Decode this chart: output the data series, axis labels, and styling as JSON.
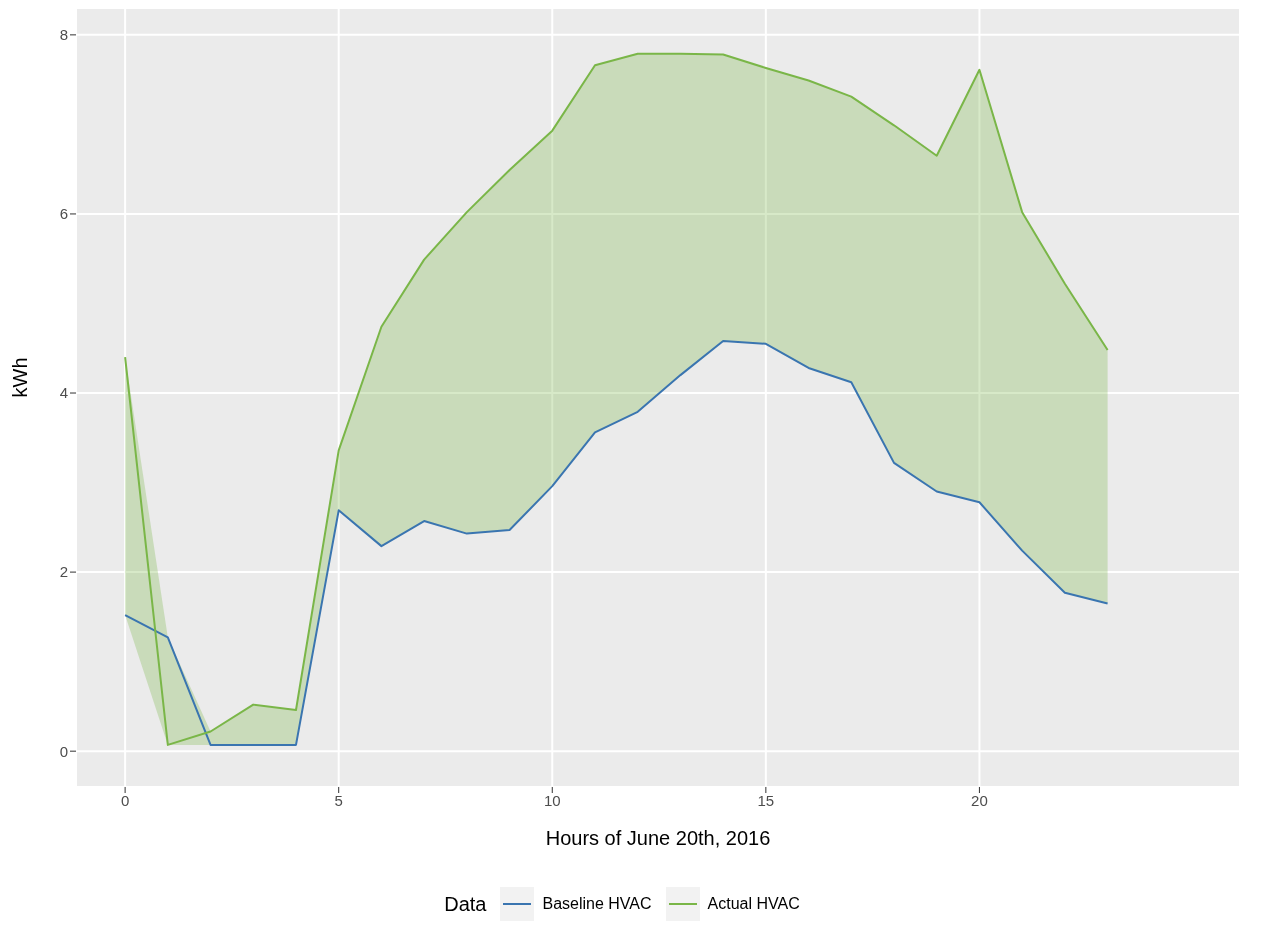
{
  "chart_data": {
    "type": "line",
    "xlabel": "Hours of June 20th, 2016",
    "ylabel": "kWh",
    "legend_title": "Data",
    "x": [
      0,
      1,
      2,
      3,
      4,
      5,
      6,
      7,
      8,
      9,
      10,
      11,
      12,
      13,
      14,
      15,
      16,
      17,
      18,
      19,
      20,
      21,
      22,
      23
    ],
    "series": [
      {
        "name": "Baseline HVAC",
        "color": "#3a75b0",
        "values": [
          1.52,
          1.27,
          0.07,
          0.07,
          0.07,
          2.69,
          2.29,
          2.57,
          2.43,
          2.47,
          2.96,
          3.56,
          3.79,
          4.2,
          4.58,
          4.55,
          4.28,
          4.12,
          3.22,
          2.9,
          2.78,
          2.24,
          1.77,
          1.65
        ]
      },
      {
        "name": "Actual HVAC",
        "color": "#7ab648",
        "values": [
          4.4,
          0.07,
          0.22,
          0.52,
          0.46,
          3.36,
          4.74,
          5.49,
          6.02,
          6.49,
          6.93,
          7.66,
          7.79,
          7.79,
          7.78,
          7.63,
          7.49,
          7.31,
          6.99,
          6.65,
          7.61,
          6.02,
          5.22,
          4.48
        ],
        "lower": [
          1.52,
          0.07,
          0.07,
          0.07,
          0.07,
          2.69,
          2.29,
          2.57,
          2.43,
          2.47,
          2.96,
          3.56,
          3.79,
          4.2,
          4.58,
          4.55,
          4.28,
          4.12,
          3.22,
          2.9,
          2.78,
          2.24,
          1.77,
          1.65
        ],
        "upper": [
          4.4,
          1.27,
          0.22,
          0.52,
          0.46,
          3.36,
          4.74,
          5.49,
          6.02,
          6.49,
          6.93,
          7.66,
          7.79,
          7.79,
          7.78,
          7.63,
          7.49,
          7.31,
          6.99,
          6.65,
          7.61,
          6.02,
          5.22,
          4.48
        ]
      }
    ],
    "xlim": [
      -1.15,
      26.1
    ],
    "xticks": [
      0,
      5,
      10,
      15,
      20
    ],
    "ylim": [
      -0.4,
      8.3
    ],
    "yticks": [
      0,
      2,
      4,
      6,
      8
    ],
    "grid": true,
    "legend": "bottom",
    "marker": "none",
    "line_style": "solid"
  }
}
